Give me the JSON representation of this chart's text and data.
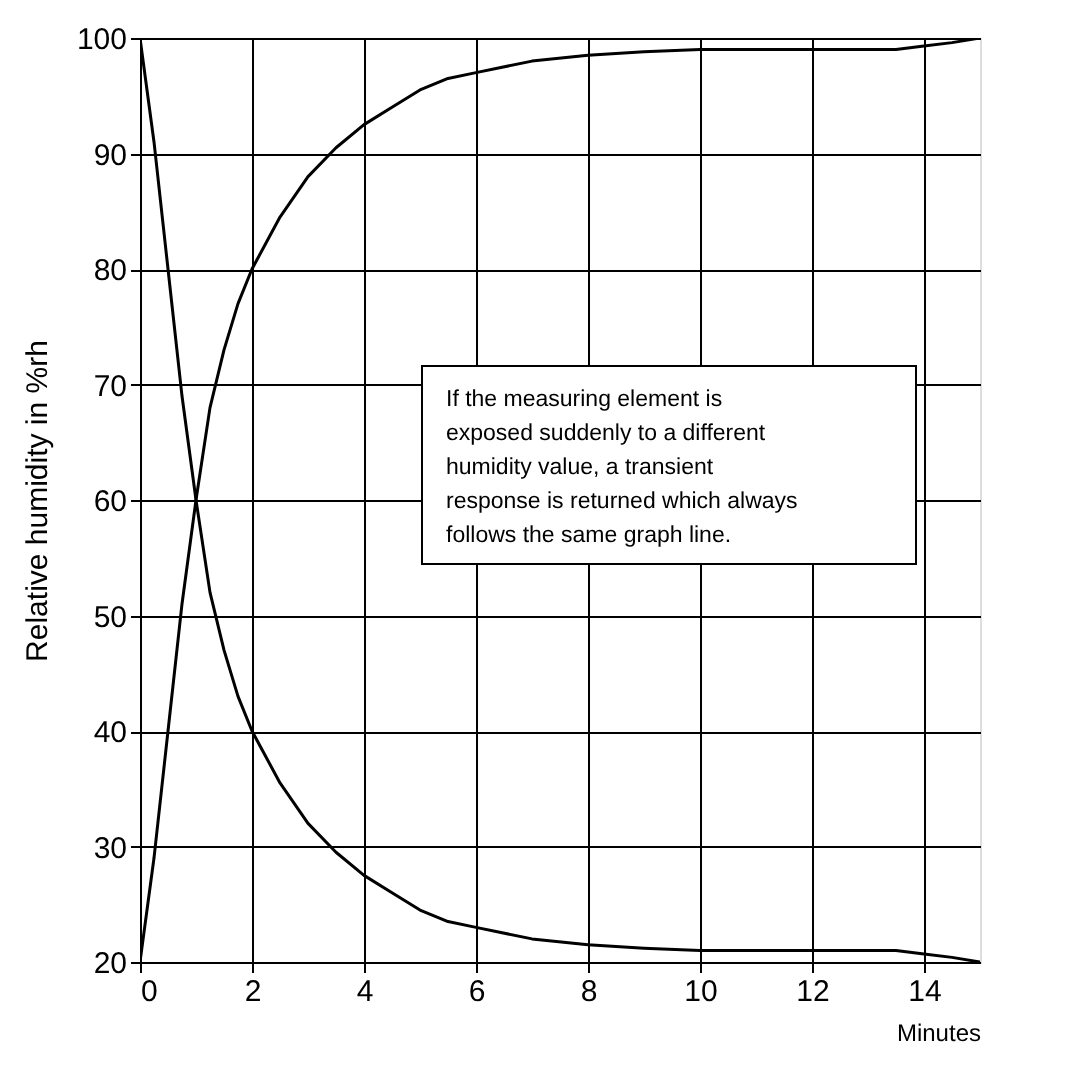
{
  "chart_data": {
    "type": "line",
    "xlabel": "Minutes",
    "ylabel": "Relative humidity in %rh",
    "x": [
      0,
      0.25,
      0.5,
      0.75,
      1,
      1.25,
      1.5,
      1.75,
      2,
      2.5,
      3,
      3.5,
      4,
      4.5,
      5,
      5.5,
      6,
      7,
      8,
      9,
      10,
      11,
      12,
      13,
      13.5,
      14,
      14.5,
      15
    ],
    "series": [
      {
        "color": "#000000",
        "values": [
          20,
          29,
          40,
          51,
          60,
          68,
          73,
          77,
          80,
          84.5,
          88,
          90.5,
          92.5,
          94,
          95.5,
          96.5,
          97,
          98,
          98.5,
          98.8,
          99,
          99,
          99,
          99,
          99,
          99.3,
          99.6,
          100
        ]
      },
      {
        "color": "#000000",
        "values": [
          100,
          91,
          80,
          69,
          60,
          52,
          47,
          43,
          40,
          35.5,
          32,
          29.5,
          27.5,
          26,
          24.5,
          23.5,
          23,
          22,
          21.5,
          21.2,
          21,
          21,
          21,
          21,
          21,
          20.7,
          20.4,
          20
        ]
      }
    ],
    "xlim": [
      0,
      15
    ],
    "ylim": [
      20,
      100
    ],
    "xticks": [
      0,
      2,
      4,
      6,
      8,
      10,
      12,
      14
    ],
    "yticks": [
      20,
      30,
      40,
      50,
      60,
      70,
      80,
      90,
      100
    ],
    "grid": true,
    "legend": false,
    "marker": "none",
    "line_style": "solid",
    "annotations": [
      "If the measuring element is exposed suddenly  to a different humidity value, a transient response is returned which always follows the same graph line."
    ]
  }
}
